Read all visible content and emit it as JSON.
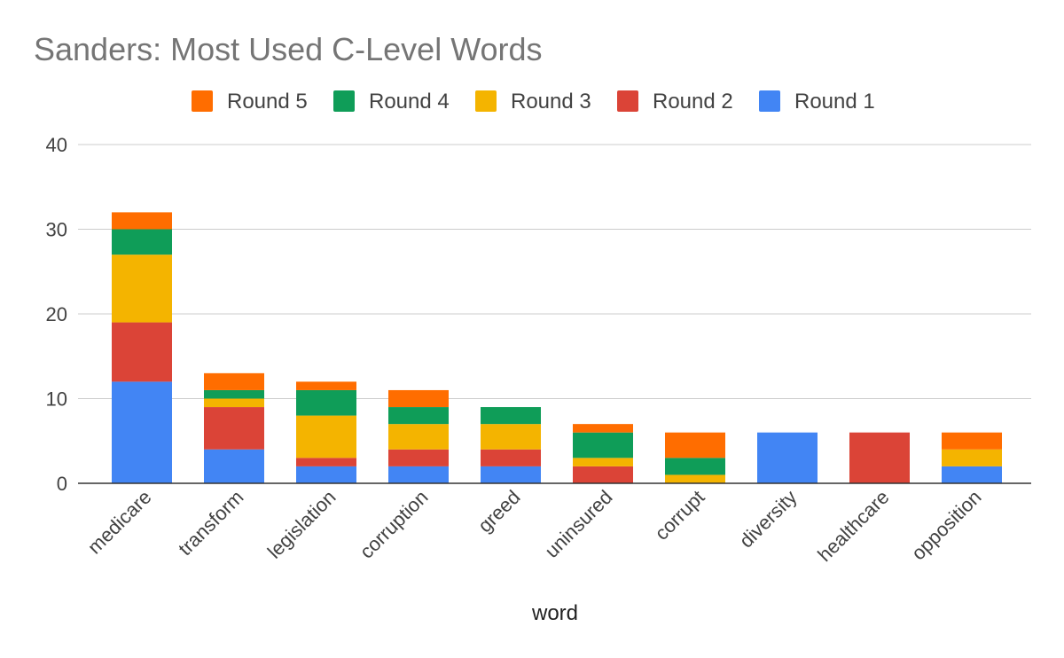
{
  "chart_data": {
    "type": "bar",
    "stacked": true,
    "title": "Sanders: Most Used C-Level  Words",
    "xlabel": "word",
    "ylabel": "",
    "ylim": [
      0,
      40
    ],
    "yticks": [
      0,
      10,
      20,
      30,
      40
    ],
    "grid": true,
    "legend_position": "top",
    "categories": [
      "medicare",
      "transform",
      "legislation",
      "corruption",
      "greed",
      "uninsured",
      "corrupt",
      "diversity",
      "healthcare",
      "opposition"
    ],
    "series": [
      {
        "name": "Round 1",
        "color": "#4285f4",
        "values": [
          12,
          4,
          2,
          2,
          2,
          0,
          0,
          6,
          0,
          2
        ]
      },
      {
        "name": "Round 2",
        "color": "#db4437",
        "values": [
          7,
          5,
          1,
          2,
          2,
          2,
          0,
          0,
          6,
          0
        ]
      },
      {
        "name": "Round 3",
        "color": "#f4b400",
        "values": [
          8,
          1,
          5,
          3,
          3,
          1,
          1,
          0,
          0,
          2
        ]
      },
      {
        "name": "Round 4",
        "color": "#0f9d58",
        "values": [
          3,
          1,
          3,
          2,
          2,
          3,
          2,
          0,
          0,
          0
        ]
      },
      {
        "name": "Round 5",
        "color": "#ff6d00",
        "values": [
          2,
          2,
          1,
          2,
          0,
          1,
          3,
          0,
          0,
          2
        ]
      }
    ],
    "legend_order": [
      "Round 5",
      "Round 4",
      "Round 3",
      "Round 2",
      "Round 1"
    ]
  }
}
